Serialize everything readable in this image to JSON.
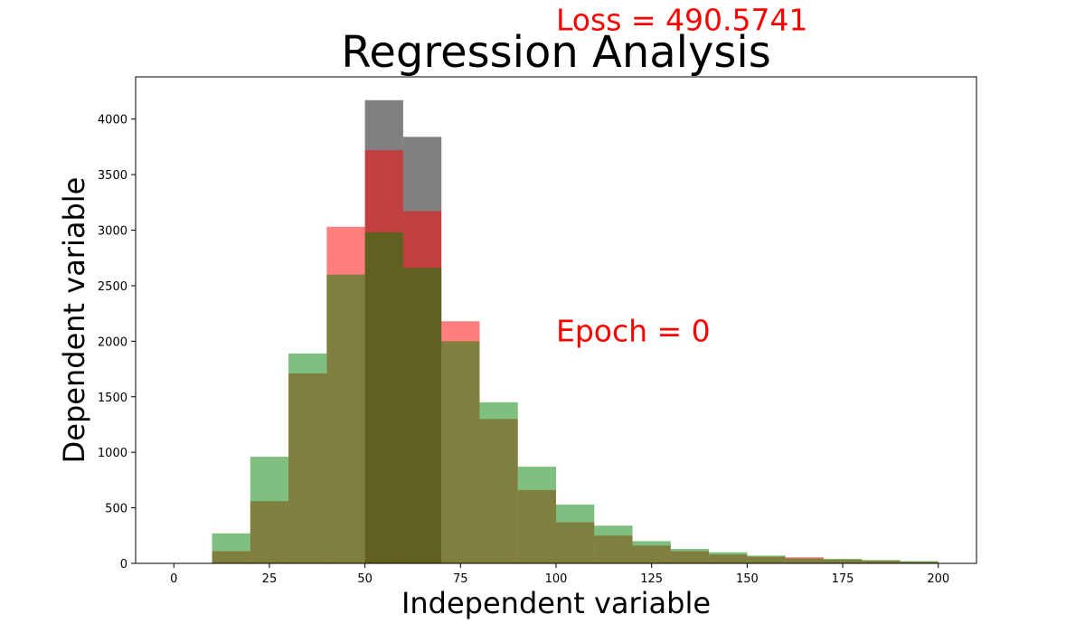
{
  "chart_data": {
    "type": "bar",
    "title": "Regression Analysis",
    "xlabel": "Independent variable",
    "ylabel": "Dependent variable",
    "xlim": [
      -10,
      210
    ],
    "ylim": [
      0,
      4380
    ],
    "xticks": [
      0,
      25,
      50,
      75,
      100,
      125,
      150,
      175,
      200
    ],
    "yticks": [
      0,
      500,
      1000,
      1500,
      2000,
      2500,
      3000,
      3500,
      4000
    ],
    "grid": false,
    "bin_edges": [
      10,
      20,
      30,
      40,
      50,
      60,
      70,
      80,
      90,
      100,
      110,
      120,
      130,
      140,
      150,
      160,
      170,
      180,
      190,
      200
    ],
    "series": [
      {
        "color": "#808080",
        "opacity": 1.0,
        "values": [
          0,
          0,
          0,
          0,
          4170,
          3840,
          0,
          0,
          0,
          0,
          0,
          0,
          0,
          0,
          0,
          0,
          0,
          0,
          0
        ]
      },
      {
        "color": "#ff0000",
        "opacity": 0.5,
        "values": [
          110,
          560,
          1710,
          3030,
          3720,
          3170,
          2180,
          1300,
          660,
          370,
          250,
          160,
          110,
          80,
          60,
          55,
          35,
          25,
          15
        ]
      },
      {
        "color": "#008000",
        "opacity": 0.5,
        "values": [
          270,
          960,
          1890,
          2600,
          2980,
          2660,
          2000,
          1450,
          870,
          530,
          340,
          200,
          130,
          100,
          70,
          45,
          40,
          30,
          20
        ]
      }
    ],
    "annotations": [
      {
        "text": "Epoch = 0",
        "x": 100,
        "y": 2000,
        "color": "#ff0000"
      },
      {
        "text": "Loss = 490.5741",
        "x": 100,
        "y": 4800,
        "color": "#ff0000"
      }
    ]
  }
}
